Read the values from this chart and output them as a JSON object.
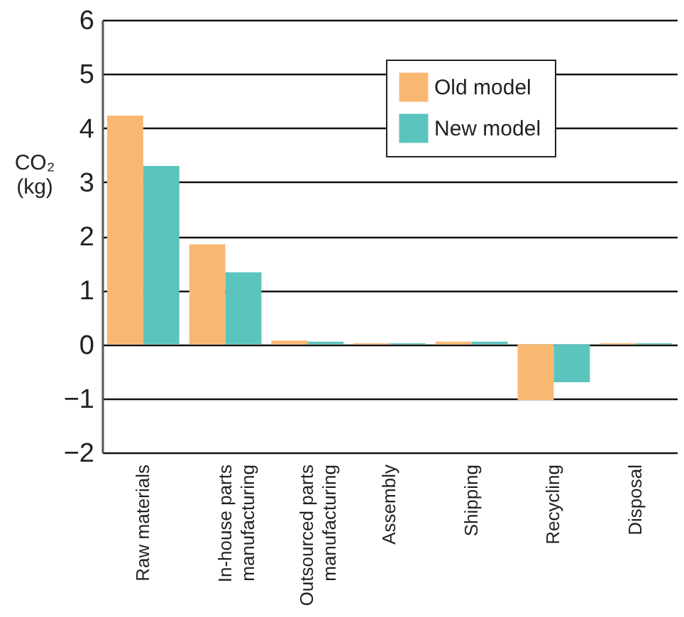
{
  "chart_data": {
    "type": "bar",
    "ylabel": "CO₂\n(kg)",
    "categories": [
      "Raw materials",
      "In-house parts\nmanufacturing",
      "Outsourced parts\nmanufacturing",
      "Assembly",
      "Shipping",
      "Recycling",
      "Disposal"
    ],
    "series": [
      {
        "name": "Old model",
        "color": "#f9b872",
        "values": [
          4.23,
          1.85,
          0.07,
          0.02,
          0.05,
          -1.03,
          0.02
        ]
      },
      {
        "name": "New model",
        "color": "#5bc5bd",
        "values": [
          3.3,
          1.33,
          0.05,
          0.02,
          0.05,
          -0.7,
          0.02
        ]
      }
    ],
    "ylim": [
      -2,
      6
    ],
    "yticks": [
      -2,
      -1,
      0,
      1,
      2,
      3,
      4,
      5,
      6
    ],
    "grid": "y",
    "legend": "top right"
  }
}
